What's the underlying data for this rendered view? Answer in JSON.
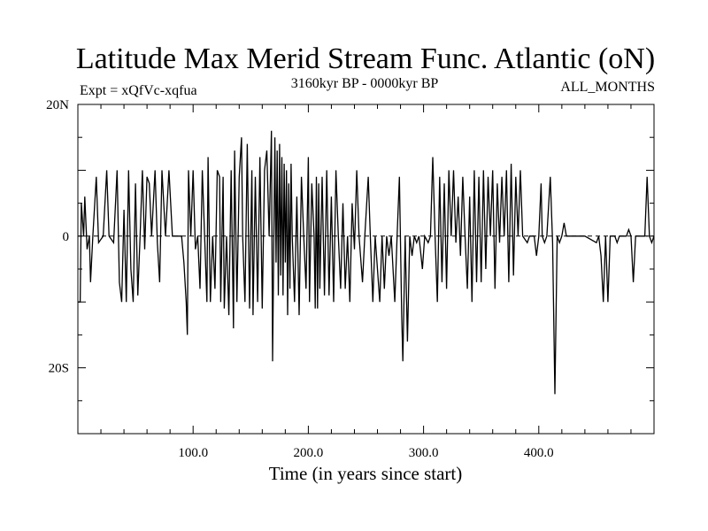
{
  "chart_data": {
    "type": "line",
    "title": "Latitude Max Merid Stream Func. Atlantic (oN)",
    "subtitle_left": "Expt = xQfVc-xqfua",
    "subtitle_center": "3160kyr BP - 0000kyr BP",
    "subtitle_right": "ALL_MONTHS",
    "xlabel": "Time (in years since start)",
    "ylabel": "",
    "xlim": [
      0,
      500
    ],
    "ylim": [
      -30,
      20
    ],
    "x_ticks": [
      {
        "value": 100,
        "label": "100.0"
      },
      {
        "value": 200,
        "label": "200.0"
      },
      {
        "value": 300,
        "label": "300.0"
      },
      {
        "value": 400,
        "label": "400.0"
      }
    ],
    "y_ticks": [
      {
        "value": 20,
        "label": "20N"
      },
      {
        "value": 0,
        "label": "0"
      },
      {
        "value": -20,
        "label": "20S"
      }
    ],
    "x_minor_step": 20,
    "y_minor_step": 5,
    "reference_line": {
      "value": 0,
      "style": "dashed"
    },
    "series": [
      {
        "name": "Latitude Max Merid Stream Func",
        "values": [
          [
            0,
            -10
          ],
          [
            2,
            -10
          ],
          [
            3,
            5
          ],
          [
            5,
            0
          ],
          [
            6,
            6
          ],
          [
            8,
            -2
          ],
          [
            10,
            0
          ],
          [
            11,
            -7
          ],
          [
            13,
            0
          ],
          [
            16,
            9
          ],
          [
            18,
            -1
          ],
          [
            22,
            0
          ],
          [
            25,
            10
          ],
          [
            27,
            0
          ],
          [
            31,
            -1
          ],
          [
            34,
            10
          ],
          [
            36,
            -7
          ],
          [
            38,
            -10
          ],
          [
            40,
            4
          ],
          [
            42,
            -10
          ],
          [
            44,
            10
          ],
          [
            46,
            -5
          ],
          [
            48,
            -10
          ],
          [
            50,
            8
          ],
          [
            52,
            -9
          ],
          [
            54,
            0
          ],
          [
            56,
            10
          ],
          [
            58,
            -2
          ],
          [
            60,
            9
          ],
          [
            62,
            8
          ],
          [
            64,
            0
          ],
          [
            67,
            10
          ],
          [
            69,
            -1
          ],
          [
            71,
            -7
          ],
          [
            73,
            10
          ],
          [
            76,
            0
          ],
          [
            79,
            10
          ],
          [
            82,
            0
          ],
          [
            90,
            0
          ],
          [
            92,
            -4
          ],
          [
            94,
            -10
          ],
          [
            95,
            -15
          ],
          [
            96,
            10
          ],
          [
            98,
            0
          ],
          [
            100,
            10
          ],
          [
            102,
            -2
          ],
          [
            104,
            0
          ],
          [
            106,
            -8
          ],
          [
            108,
            10
          ],
          [
            110,
            0
          ],
          [
            112,
            -10
          ],
          [
            113,
            12
          ],
          [
            115,
            -10
          ],
          [
            117,
            0
          ],
          [
            119,
            -8
          ],
          [
            121,
            10
          ],
          [
            123,
            9
          ],
          [
            124,
            -10
          ],
          [
            126,
            9
          ],
          [
            127,
            -11
          ],
          [
            129,
            0
          ],
          [
            131,
            -12
          ],
          [
            133,
            10
          ],
          [
            135,
            -14
          ],
          [
            136,
            13
          ],
          [
            138,
            -10
          ],
          [
            140,
            9
          ],
          [
            142,
            15
          ],
          [
            143,
            0
          ],
          [
            145,
            -10
          ],
          [
            147,
            14
          ],
          [
            149,
            -11
          ],
          [
            151,
            10
          ],
          [
            152,
            -12
          ],
          [
            154,
            9
          ],
          [
            156,
            -10
          ],
          [
            158,
            12
          ],
          [
            160,
            -11
          ],
          [
            162,
            10
          ],
          [
            164,
            13
          ],
          [
            166,
            0
          ],
          [
            168,
            16
          ],
          [
            169,
            -19
          ],
          [
            171,
            15
          ],
          [
            172,
            -4
          ],
          [
            173,
            13
          ],
          [
            174,
            -9
          ],
          [
            175,
            14
          ],
          [
            176,
            -6
          ],
          [
            177,
            12
          ],
          [
            178,
            -9
          ],
          [
            179,
            11
          ],
          [
            180,
            -4
          ],
          [
            181,
            10
          ],
          [
            182,
            -12
          ],
          [
            183,
            8
          ],
          [
            184,
            -8
          ],
          [
            185,
            11
          ],
          [
            186,
            0
          ],
          [
            188,
            -10
          ],
          [
            190,
            6
          ],
          [
            192,
            -12
          ],
          [
            194,
            9
          ],
          [
            196,
            0
          ],
          [
            198,
            -8
          ],
          [
            200,
            12
          ],
          [
            201,
            -10
          ],
          [
            203,
            8
          ],
          [
            205,
            0
          ],
          [
            206,
            -11
          ],
          [
            207,
            9
          ],
          [
            208,
            -11
          ],
          [
            209,
            8
          ],
          [
            210,
            -8
          ],
          [
            212,
            9
          ],
          [
            214,
            -9
          ],
          [
            216,
            10
          ],
          [
            218,
            -9
          ],
          [
            220,
            6
          ],
          [
            222,
            -10
          ],
          [
            224,
            10
          ],
          [
            226,
            0
          ],
          [
            228,
            -8
          ],
          [
            230,
            5
          ],
          [
            232,
            -8
          ],
          [
            234,
            0
          ],
          [
            236,
            -10
          ],
          [
            238,
            5
          ],
          [
            240,
            -2
          ],
          [
            242,
            10
          ],
          [
            244,
            0
          ],
          [
            247,
            -7
          ],
          [
            249,
            0
          ],
          [
            252,
            9
          ],
          [
            254,
            -1
          ],
          [
            256,
            -10
          ],
          [
            258,
            0
          ],
          [
            262,
            -10
          ],
          [
            264,
            0
          ],
          [
            266,
            -8
          ],
          [
            268,
            0
          ],
          [
            270,
            -3
          ],
          [
            272,
            0
          ],
          [
            275,
            -10
          ],
          [
            277,
            0
          ],
          [
            279,
            9
          ],
          [
            281,
            -12
          ],
          [
            282,
            -19
          ],
          [
            284,
            0
          ],
          [
            286,
            -16
          ],
          [
            288,
            0
          ],
          [
            290,
            -3
          ],
          [
            292,
            0
          ],
          [
            294,
            -1
          ],
          [
            296,
            0
          ],
          [
            299,
            -5
          ],
          [
            301,
            0
          ],
          [
            304,
            -1
          ],
          [
            306,
            0
          ],
          [
            308,
            12
          ],
          [
            310,
            0
          ],
          [
            312,
            -10
          ],
          [
            314,
            9
          ],
          [
            316,
            -7
          ],
          [
            318,
            8
          ],
          [
            320,
            -8
          ],
          [
            322,
            10
          ],
          [
            324,
            0
          ],
          [
            326,
            10
          ],
          [
            328,
            -1
          ],
          [
            330,
            6
          ],
          [
            332,
            -3
          ],
          [
            334,
            9
          ],
          [
            336,
            0
          ],
          [
            338,
            -8
          ],
          [
            340,
            6
          ],
          [
            342,
            -10
          ],
          [
            344,
            10
          ],
          [
            346,
            -7
          ],
          [
            348,
            9
          ],
          [
            350,
            -7
          ],
          [
            352,
            10
          ],
          [
            354,
            -5
          ],
          [
            356,
            9
          ],
          [
            358,
            0
          ],
          [
            360,
            10
          ],
          [
            362,
            -8
          ],
          [
            364,
            8
          ],
          [
            366,
            -1
          ],
          [
            368,
            9
          ],
          [
            370,
            0
          ],
          [
            372,
            10
          ],
          [
            374,
            -7
          ],
          [
            376,
            11
          ],
          [
            378,
            -6
          ],
          [
            380,
            9
          ],
          [
            382,
            0
          ],
          [
            384,
            10
          ],
          [
            386,
            0
          ],
          [
            390,
            -1
          ],
          [
            392,
            0
          ],
          [
            396,
            0
          ],
          [
            398,
            -3
          ],
          [
            400,
            0
          ],
          [
            402,
            8
          ],
          [
            403,
            0
          ],
          [
            405,
            -1
          ],
          [
            407,
            0
          ],
          [
            410,
            9
          ],
          [
            412,
            -1
          ],
          [
            414,
            -24
          ],
          [
            416,
            0
          ],
          [
            418,
            -1
          ],
          [
            420,
            0
          ],
          [
            422,
            2
          ],
          [
            424,
            0
          ],
          [
            430,
            0
          ],
          [
            440,
            0
          ],
          [
            450,
            -1
          ],
          [
            452,
            0
          ],
          [
            454,
            -3
          ],
          [
            456,
            -10
          ],
          [
            458,
            0
          ],
          [
            460,
            -10
          ],
          [
            462,
            0
          ],
          [
            466,
            0
          ],
          [
            468,
            -1
          ],
          [
            470,
            0
          ],
          [
            476,
            0
          ],
          [
            478,
            1
          ],
          [
            480,
            0
          ],
          [
            482,
            -7
          ],
          [
            484,
            0
          ],
          [
            488,
            0
          ],
          [
            492,
            0
          ],
          [
            494,
            9
          ],
          [
            496,
            0
          ],
          [
            498,
            -1
          ],
          [
            500,
            0
          ]
        ]
      }
    ]
  }
}
